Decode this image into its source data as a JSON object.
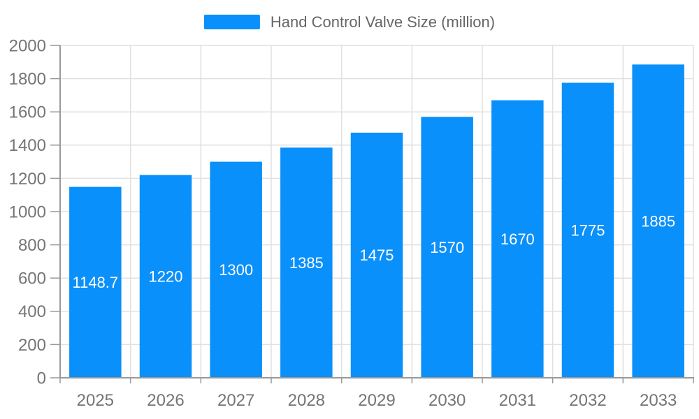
{
  "legend": {
    "label": "Hand Control Valve Size (million)"
  },
  "chart_data": {
    "type": "bar",
    "title": "",
    "categories": [
      "2025",
      "2026",
      "2027",
      "2028",
      "2029",
      "2030",
      "2031",
      "2032",
      "2033"
    ],
    "series": [
      {
        "name": "Hand Control Valve Size (million)",
        "values": [
          1148.7,
          1220,
          1300,
          1385,
          1475,
          1570,
          1670,
          1775,
          1885
        ]
      }
    ],
    "value_labels": [
      "1148.7",
      "1220",
      "1300",
      "1385",
      "1475",
      "1570",
      "1670",
      "1775",
      "1885"
    ],
    "xlabel": "",
    "ylabel": "",
    "ylim": [
      0,
      2000
    ],
    "ytick_step": 200,
    "ytick_labels": [
      "0",
      "200",
      "400",
      "600",
      "800",
      "1000",
      "1200",
      "1400",
      "1600",
      "1800",
      "2000"
    ],
    "grid": true,
    "legend_position": "top-center",
    "colors": {
      "bar": "#0a90fa",
      "grid_line": "#e0e0e0",
      "axis_line": "#999999",
      "axis_label": "#757575",
      "legend_text": "#666666",
      "value_label": "#ffffff"
    }
  }
}
